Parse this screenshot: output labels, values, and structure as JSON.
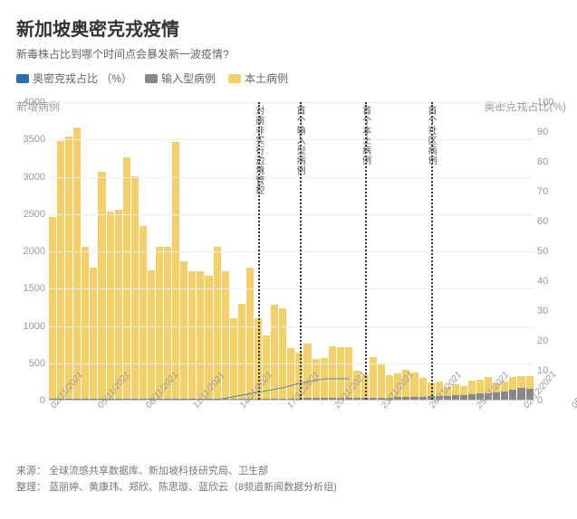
{
  "title": "新加坡奥密克戎疫情",
  "subtitle": "新毒株占比到哪个时间点会暴发新一波疫情?",
  "legend": [
    {
      "label": "奥密克戎占比 （%）",
      "color": "#2a6fb0"
    },
    {
      "label": "输入型病例",
      "color": "#888888"
    },
    {
      "label": "本土病例",
      "color": "#f4d06a"
    }
  ],
  "axes": {
    "left_title": "新增病例",
    "right_title": "奥密克戎占比(%)",
    "left_max": 4000,
    "left_step": 500,
    "right_max": 100,
    "right_step": 10,
    "left_ticks": [
      0,
      500,
      1000,
      1500,
      2000,
      2500,
      3000,
      3500,
      4000
    ],
    "right_ticks": [
      0,
      10,
      20,
      30,
      40,
      50,
      60,
      70,
      80,
      90,
      100
    ]
  },
  "colors": {
    "local": "#f4d06a",
    "imported": "#888888",
    "line": "#2a6fb0",
    "grid": "#eeeeee",
    "axis": "#cccccc",
    "bg": "#ffffff"
  },
  "data": [
    {
      "date": "02/11/2021",
      "local": 2450,
      "imported": 10,
      "pct": 0,
      "showX": true
    },
    {
      "date": "03/11/2021",
      "local": 3470,
      "imported": 10,
      "pct": 0
    },
    {
      "date": "04/11/2021",
      "local": 3530,
      "imported": 10,
      "pct": 0
    },
    {
      "date": "05/11/2021",
      "local": 3650,
      "imported": 10,
      "pct": 0,
      "showX": true
    },
    {
      "date": "06/11/2021",
      "local": 2040,
      "imported": 10,
      "pct": 0
    },
    {
      "date": "07/11/2021",
      "local": 1760,
      "imported": 10,
      "pct": 0
    },
    {
      "date": "08/11/2021",
      "local": 3050,
      "imported": 10,
      "pct": 0,
      "showX": true
    },
    {
      "date": "09/11/2021",
      "local": 2520,
      "imported": 10,
      "pct": 0
    },
    {
      "date": "10/11/2021",
      "local": 2540,
      "imported": 10,
      "pct": 0
    },
    {
      "date": "11/11/2021",
      "local": 3250,
      "imported": 10,
      "pct": 0,
      "showX": true
    },
    {
      "date": "12/11/2021",
      "local": 2999,
      "imported": 10,
      "pct": 0
    },
    {
      "date": "13/11/2021",
      "local": 2320,
      "imported": 10,
      "pct": 0
    },
    {
      "date": "14/11/2021",
      "local": 1730,
      "imported": 10,
      "pct": 0,
      "showX": true
    },
    {
      "date": "15/11/2021",
      "local": 2040,
      "imported": 10,
      "pct": 0
    },
    {
      "date": "16/11/2021",
      "local": 2040,
      "imported": 10,
      "pct": 0
    },
    {
      "date": "17/11/2021",
      "local": 3460,
      "imported": 10,
      "pct": 0,
      "showX": true
    },
    {
      "date": "18/11/2021",
      "local": 1850,
      "imported": 10,
      "pct": 0
    },
    {
      "date": "19/11/2021",
      "local": 1720,
      "imported": 10,
      "pct": 0
    },
    {
      "date": "20/11/2021",
      "local": 1720,
      "imported": 10,
      "pct": 0,
      "showX": true
    },
    {
      "date": "21/11/2021",
      "local": 1650,
      "imported": 10,
      "pct": 0
    },
    {
      "date": "22/11/2021",
      "local": 2050,
      "imported": 10,
      "pct": 0
    },
    {
      "date": "23/11/2021",
      "local": 1720,
      "imported": 10,
      "pct": 0.5,
      "showX": true
    },
    {
      "date": "24/11/2021",
      "local": 1090,
      "imported": 10,
      "pct": 1
    },
    {
      "date": "25/11/2021",
      "local": 1280,
      "imported": 10,
      "pct": 1.5
    },
    {
      "date": "26/11/2021",
      "local": 1760,
      "imported": 10,
      "pct": 2,
      "showX": true
    },
    {
      "date": "27/11/2021",
      "local": 1080,
      "imported": 10,
      "pct": 2.5
    },
    {
      "date": "28/11/2021",
      "local": 850,
      "imported": 15,
      "pct": 3
    },
    {
      "date": "29/11/2021",
      "local": 1260,
      "imported": 15,
      "pct": 3.5,
      "showX": true
    },
    {
      "date": "30/11/2021",
      "local": 1210,
      "imported": 15,
      "pct": 4
    },
    {
      "date": "01/12/2021",
      "local": 680,
      "imported": 15,
      "pct": 4.8
    },
    {
      "date": "02/12/2021",
      "local": 620,
      "imported": 15,
      "pct": 5.5,
      "showX": true
    },
    {
      "date": "03/12/2021",
      "local": 740,
      "imported": 20,
      "pct": 6
    },
    {
      "date": "04/12/2021",
      "local": 530,
      "imported": 20,
      "pct": 6.5
    },
    {
      "date": "05/12/2021",
      "local": 540,
      "imported": 20,
      "pct": 7,
      "showX": true
    },
    {
      "date": "06/12/2021",
      "local": 700,
      "imported": 20,
      "pct": 7
    },
    {
      "date": "07/12/2021",
      "local": 680,
      "imported": 25,
      "pct": 7
    },
    {
      "date": "08/12/2021",
      "local": 680,
      "imported": 25,
      "pct": 7,
      "showX": true
    },
    {
      "date": "09/12/2021",
      "local": 370,
      "imported": 25,
      "pct": null
    },
    {
      "date": "10/12/2021",
      "local": 320,
      "imported": 25,
      "pct": null
    },
    {
      "date": "11/12/2021",
      "local": 540,
      "imported": 30,
      "pct": null,
      "showX": true
    },
    {
      "date": "12/12/2021",
      "local": 460,
      "imported": 30,
      "pct": null
    },
    {
      "date": "13/12/2021",
      "local": 300,
      "imported": 30,
      "pct": null
    },
    {
      "date": "14/12/2021",
      "local": 320,
      "imported": 35,
      "pct": null,
      "showX": true
    },
    {
      "date": "15/12/2021",
      "local": 370,
      "imported": 35,
      "pct": null
    },
    {
      "date": "16/12/2021",
      "local": 330,
      "imported": 40,
      "pct": null
    },
    {
      "date": "17/12/2021",
      "local": 250,
      "imported": 40,
      "pct": null,
      "showX": true
    },
    {
      "date": "18/12/2021",
      "local": 190,
      "imported": 45,
      "pct": null
    },
    {
      "date": "19/12/2021",
      "local": 200,
      "imported": 45,
      "pct": null
    },
    {
      "date": "20/12/2021",
      "local": 120,
      "imported": 50,
      "pct": null,
      "showX": true
    },
    {
      "date": "21/12/2021",
      "local": 150,
      "imported": 55,
      "pct": null
    },
    {
      "date": "22/12/2021",
      "local": 120,
      "imported": 60,
      "pct": null
    },
    {
      "date": "23/12/2021",
      "local": 180,
      "imported": 70,
      "pct": null,
      "showX": true
    },
    {
      "date": "24/12/2021",
      "local": 190,
      "imported": 80,
      "pct": null
    },
    {
      "date": "25/12/2021",
      "local": 220,
      "imported": 90,
      "pct": null
    },
    {
      "date": "26/12/2021",
      "local": 120,
      "imported": 100,
      "pct": null,
      "showX": true
    },
    {
      "date": "27/12/2021",
      "local": 130,
      "imported": 110,
      "pct": null
    },
    {
      "date": "28/12/2021",
      "local": 180,
      "imported": 130,
      "pct": null
    },
    {
      "date": "29/12/2021",
      "local": 160,
      "imported": 160,
      "pct": null,
      "showX": true
    },
    {
      "date": "30/12/2021",
      "local": 170,
      "imported": 150,
      "pct": null
    }
  ],
  "annotations": [
    {
      "index": 25,
      "label": "对南非实行边境管控"
    },
    {
      "index": 30,
      "label": "首个输入型病例"
    },
    {
      "index": 38,
      "label": "首个本土病例"
    },
    {
      "index": 46,
      "label": "首个社区病例"
    }
  ],
  "footer": {
    "source_label": "来源：",
    "source_value": "全球流感共享数据库、新加坡科技研究局、卫生部",
    "credit_label": "整理：",
    "credit_value": "蓝丽婷、黄康玮、郑欣、陈思璇、蓝欣云（8频道新闻数据分析组)"
  }
}
